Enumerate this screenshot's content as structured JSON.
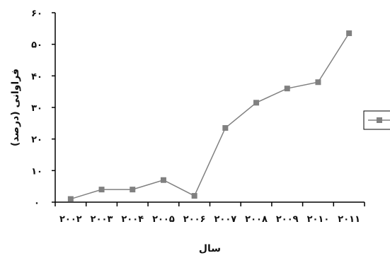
{
  "chart_data": {
    "type": "line",
    "title": "",
    "xlabel": "سال",
    "ylabel": "فراوانی (درصد)",
    "categories": [
      "۲۰۰۲",
      "۲۰۰۳",
      "۲۰۰۴",
      "۲۰۰۵",
      "۲۰۰۶",
      "۲۰۰۷",
      "۲۰۰۸",
      "۲۰۰۹",
      "۲۰۱۰",
      "۲۰۱۱"
    ],
    "y_ticks": [
      "۰",
      "۱۰",
      "۲۰",
      "۳۰",
      "۴۰",
      "۵۰",
      "۶۰"
    ],
    "ylim": [
      0,
      60
    ],
    "grid": false,
    "legend": "right",
    "series": [
      {
        "color": "#808080",
        "values": [
          1,
          4,
          4,
          7,
          2,
          23.5,
          31.5,
          36,
          38,
          53.5
        ]
      }
    ]
  }
}
